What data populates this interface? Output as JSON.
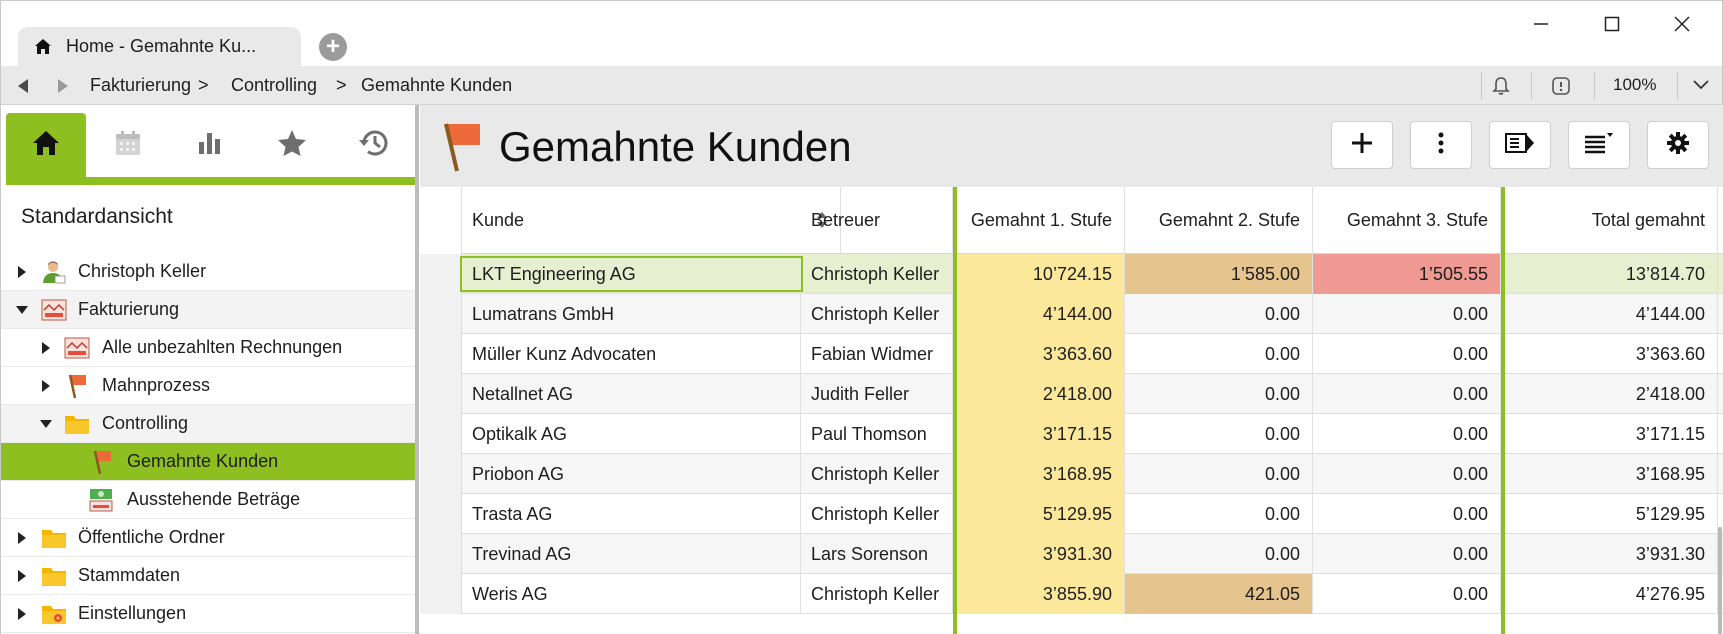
{
  "tab": {
    "title": "Home - Gemahnte Ku..."
  },
  "breadcrumb": [
    "Fakturierung",
    "Controlling",
    "Gemahnte Kunden"
  ],
  "breadcrumb_sep": ">",
  "zoom": "100%",
  "sidebar": {
    "view_title": "Standardansicht",
    "tree": [
      {
        "label": "Christoph Keller",
        "icon": "user-icon",
        "level": 0,
        "expanded": false
      },
      {
        "label": "Fakturierung",
        "icon": "invoice-icon",
        "level": 0,
        "expanded": true
      },
      {
        "label": "Alle unbezahlten Rechnungen",
        "icon": "invoice-icon",
        "level": 1,
        "expanded": false
      },
      {
        "label": "Mahnprozess",
        "icon": "flag-icon",
        "level": 1,
        "expanded": false
      },
      {
        "label": "Controlling",
        "icon": "folder-icon",
        "level": 1,
        "expanded": true
      },
      {
        "label": "Gemahnte Kunden",
        "icon": "flag-icon",
        "level": 2,
        "selected": true
      },
      {
        "label": "Ausstehende Beträge",
        "icon": "money-icon",
        "level": 2
      },
      {
        "label": "Öffentliche Ordner",
        "icon": "folder-icon",
        "level": 0,
        "expanded": false
      },
      {
        "label": "Stammdaten",
        "icon": "folder-icon",
        "level": 0,
        "expanded": false
      },
      {
        "label": "Einstellungen",
        "icon": "settings-folder-icon",
        "level": 0,
        "expanded": false
      }
    ]
  },
  "main": {
    "title": "Gemahnte Kunden",
    "columns": {
      "kunde": "Kunde",
      "betreuer": "Betreuer",
      "stufe1": "Gemahnt 1. Stufe",
      "stufe2": "Gemahnt 2. Stufe",
      "stufe3": "Gemahnt 3. Stufe",
      "total": "Total gemahnt"
    },
    "rows": [
      {
        "kunde": "LKT Engineering AG",
        "betreuer": "Christoph Keller",
        "stufe1": "10’724.15",
        "stufe2": "1’585.00",
        "stufe3": "1’505.55",
        "total": "13’814.70"
      },
      {
        "kunde": "Lumatrans GmbH",
        "betreuer": "Christoph Keller",
        "stufe1": "4’144.00",
        "stufe2": "0.00",
        "stufe3": "0.00",
        "total": "4’144.00"
      },
      {
        "kunde": "Müller Kunz Advocaten",
        "betreuer": "Fabian Widmer",
        "stufe1": "3’363.60",
        "stufe2": "0.00",
        "stufe3": "0.00",
        "total": "3’363.60"
      },
      {
        "kunde": "Netallnet AG",
        "betreuer": "Judith Feller",
        "stufe1": "2’418.00",
        "stufe2": "0.00",
        "stufe3": "0.00",
        "total": "2’418.00"
      },
      {
        "kunde": "Optikalk AG",
        "betreuer": "Paul Thomson",
        "stufe1": "3’171.15",
        "stufe2": "0.00",
        "stufe3": "0.00",
        "total": "3’171.15"
      },
      {
        "kunde": "Priobon AG",
        "betreuer": "Christoph Keller",
        "stufe1": "3’168.95",
        "stufe2": "0.00",
        "stufe3": "0.00",
        "total": "3’168.95"
      },
      {
        "kunde": "Trasta AG",
        "betreuer": "Christoph Keller",
        "stufe1": "5’129.95",
        "stufe2": "0.00",
        "stufe3": "0.00",
        "total": "5’129.95"
      },
      {
        "kunde": "Trevinad AG",
        "betreuer": "Lars Sorenson",
        "stufe1": "3’931.30",
        "stufe2": "0.00",
        "stufe3": "0.00",
        "total": "3’931.30"
      },
      {
        "kunde": "Weris AG",
        "betreuer": "Christoph Keller",
        "stufe1": "3’855.90",
        "stufe2": "421.05",
        "stufe3": "0.00",
        "total": "4’276.95"
      }
    ]
  },
  "colors": {
    "accent_green": "#8cbf1f",
    "stufe1_yellow": "#fbe89b",
    "stufe2_tan": "#e5c48e",
    "stufe3_red": "#ee9a93",
    "selected_row": "#e6efd0"
  }
}
